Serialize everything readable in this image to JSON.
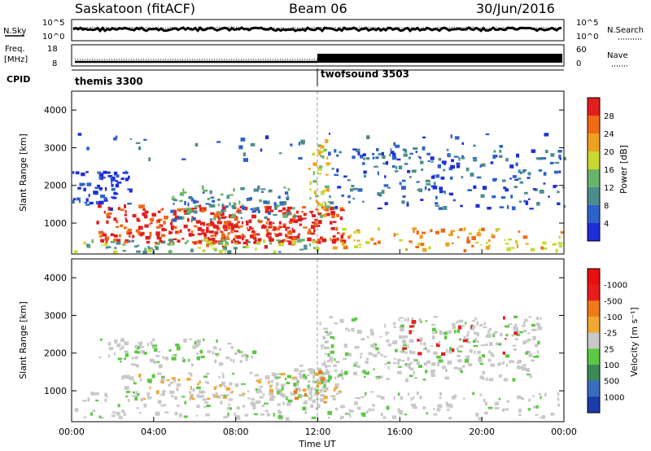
{
  "header": {
    "station": "Saskatoon (fitACF)",
    "beam": "Beam 06",
    "date": "30/Jun/2016"
  },
  "params": {
    "nsky_label": "N.Sky",
    "nsky_tick_top": "10^5",
    "nsky_tick_bot": "10^0",
    "nsearch_label": "N.Search",
    "nsearch_tick_top": "10^5",
    "nsearch_tick_bot": "10^0",
    "freq_label_1": "Freq.",
    "freq_label_2": "[MHz]",
    "freq_tick_top": "18",
    "freq_tick_bot": "8",
    "nave_label": "Nave",
    "nave_tick_top": "60",
    "nave_tick_bot": "0",
    "cpid_label": "CPID",
    "cpid_1": "themis 3300",
    "cpid_2": "twofsound 3503"
  },
  "chart_data": [
    {
      "type": "heatmap",
      "title": "",
      "xlabel": "",
      "ylabel": "Slant Range [km]",
      "ylim": [
        180,
        4500
      ],
      "yticks": [
        "1000",
        "2000",
        "3000",
        "4000"
      ],
      "xlim_hours": [
        0,
        24
      ],
      "colorbar": {
        "label": "Power [dB]",
        "ticks": [
          "4",
          "8",
          "12",
          "16",
          "20",
          "24",
          "28"
        ],
        "colors": [
          "#1d2ed6",
          "#2c63c8",
          "#4d8c8c",
          "#6ab46a",
          "#c8d830",
          "#f0a020",
          "#ee6a14",
          "#e21e1e"
        ]
      }
    },
    {
      "type": "heatmap",
      "title": "",
      "xlabel": "Time UT",
      "ylabel": "Slant Range [km]",
      "ylim": [
        180,
        4500
      ],
      "yticks": [
        "1000",
        "2000",
        "3000",
        "4000"
      ],
      "xticks": [
        "00:00",
        "04:00",
        "08:00",
        "12:00",
        "16:00",
        "20:00",
        "00:00"
      ],
      "colorbar": {
        "label": "Velocity [m s⁻¹]",
        "ticks": [
          "1000",
          "500",
          "100",
          "25",
          "-25",
          "-100",
          "-500",
          "-1000"
        ],
        "colors": [
          "#1c3aa8",
          "#3a6cc0",
          "#3c8a5a",
          "#5cc844",
          "#c8c8c8",
          "#f0a830",
          "#f07a18",
          "#e81c1c",
          "#e81010"
        ]
      }
    }
  ]
}
